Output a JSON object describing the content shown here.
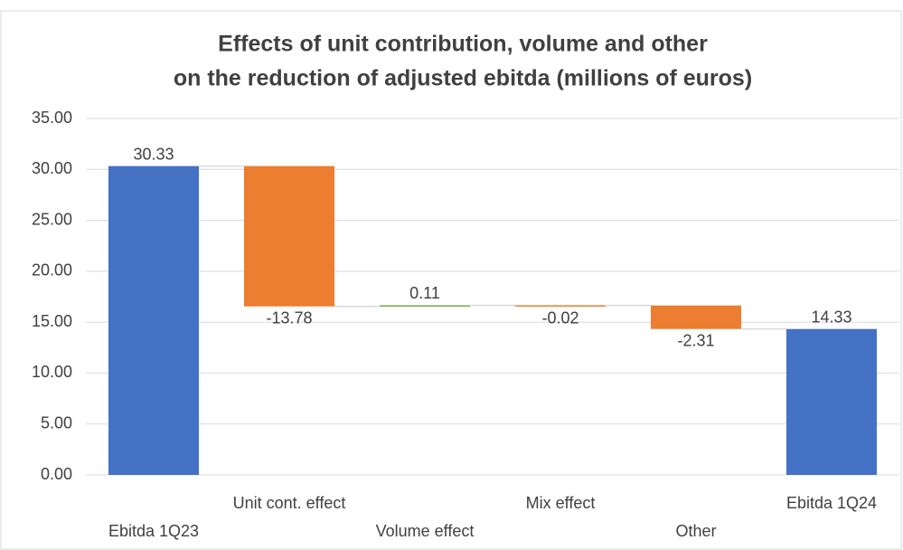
{
  "chart_data": {
    "type": "waterfall",
    "title": [
      "Effects of unit contribution, volume and other",
      "on the reduction of adjusted ebitda (millions of euros)"
    ],
    "categories": [
      "Ebitda 1Q23",
      "Unit cont. effect",
      "Volume effect",
      "Mix effect",
      "Other",
      "Ebitda 1Q24"
    ],
    "values": [
      30.33,
      -13.78,
      0.11,
      -0.02,
      -2.31,
      14.33
    ],
    "measure": [
      "total",
      "relative",
      "relative",
      "relative",
      "relative",
      "total"
    ],
    "colors": {
      "total": "#4472c4",
      "increase": "#70ad47",
      "decrease": "#ed7d31"
    },
    "ylim": [
      0,
      35
    ],
    "yticks": [
      {
        "value": 0,
        "label": "0.00"
      },
      {
        "value": 5,
        "label": "5.00"
      },
      {
        "value": 10,
        "label": "10.00"
      },
      {
        "value": 15,
        "label": "15.00"
      },
      {
        "value": 20,
        "label": "20.00"
      },
      {
        "value": 25,
        "label": "25.00"
      },
      {
        "value": 30,
        "label": "30.00"
      },
      {
        "value": 35,
        "label": "35.00"
      }
    ],
    "grid": true
  }
}
